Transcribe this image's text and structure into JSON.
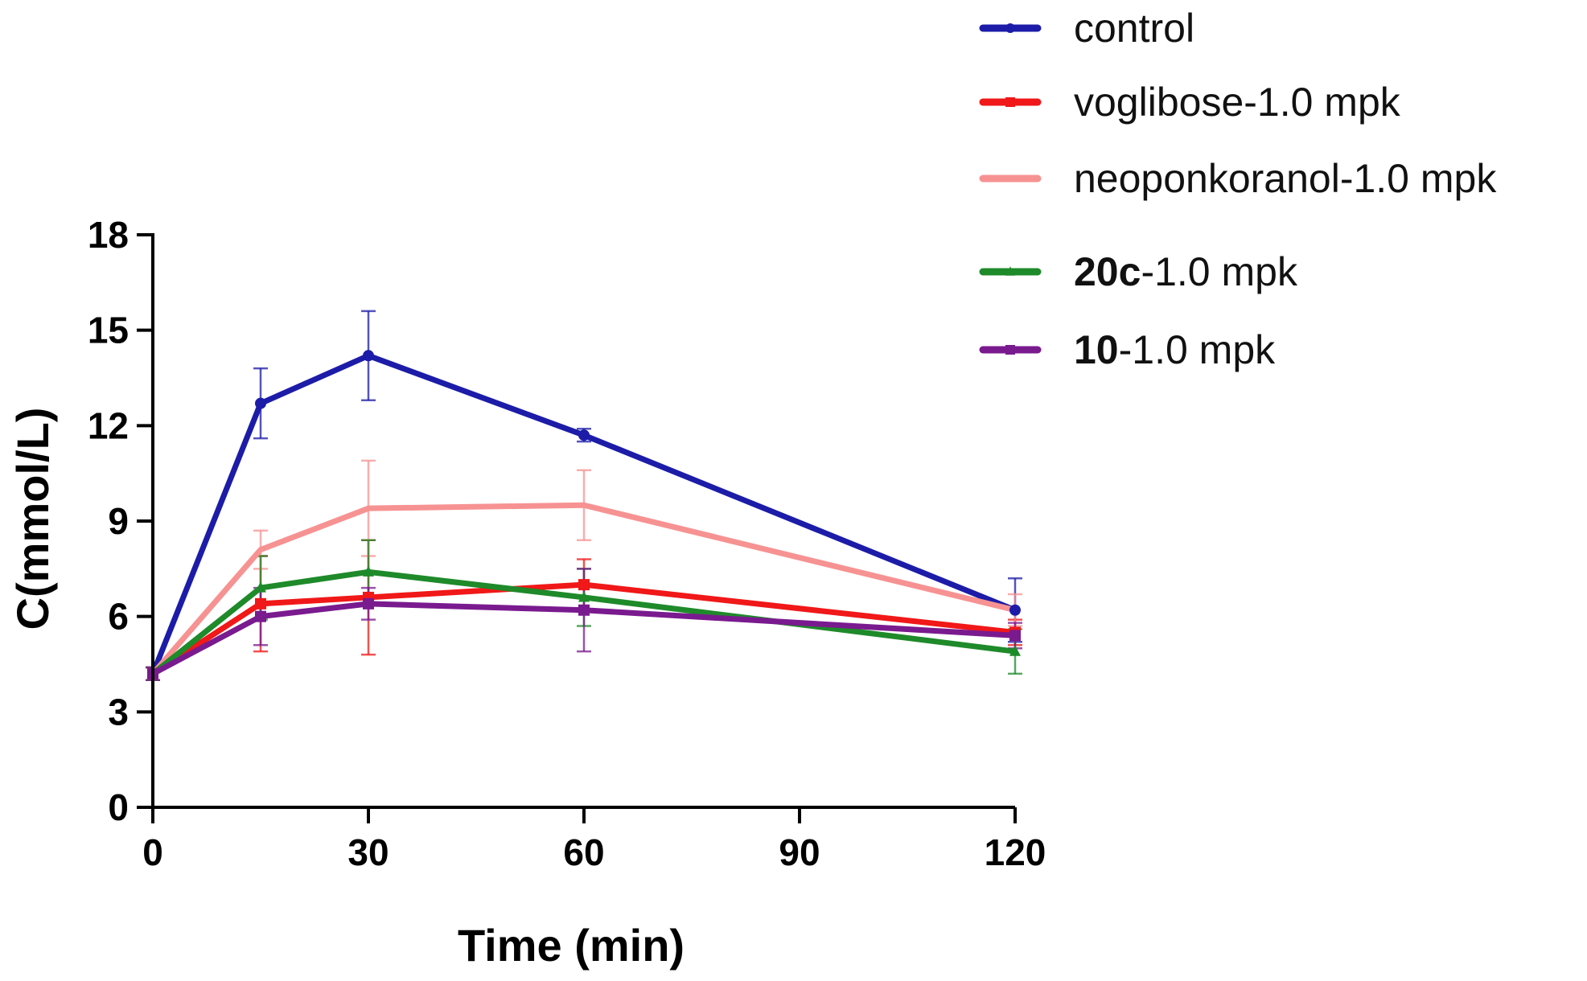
{
  "chart_data": {
    "type": "line",
    "title": "",
    "xlabel": "Time (min)",
    "ylabel": "C(mmol/L)",
    "xlim": [
      0,
      120
    ],
    "ylim": [
      0,
      18
    ],
    "xticks": [
      0,
      30,
      60,
      90,
      120
    ],
    "yticks": [
      0,
      3,
      6,
      9,
      12,
      15,
      18
    ],
    "x": [
      0,
      15,
      30,
      60,
      120
    ],
    "grid": false,
    "legend_position": "top-right",
    "series": [
      {
        "name": "control",
        "legend_bold": "",
        "legend_rest": "control",
        "color": "#1c1ca8",
        "marker": "circle",
        "values": [
          4.2,
          12.7,
          14.2,
          11.7,
          6.2
        ],
        "errors": [
          0.2,
          1.1,
          1.4,
          0.2,
          1.0
        ]
      },
      {
        "name": "voglibose-1.0 mpk",
        "legend_bold": "",
        "legend_rest": "voglibose-1.0 mpk",
        "color": "#f01818",
        "marker": "square",
        "values": [
          4.2,
          6.4,
          6.6,
          7.0,
          5.5
        ],
        "errors": [
          0.2,
          1.5,
          1.8,
          0.8,
          0.4
        ]
      },
      {
        "name": "neoponkoranol-1.0 mpk",
        "legend_bold": "",
        "legend_rest": "neoponkoranol-1.0 mpk",
        "color": "#f79292",
        "marker": "none",
        "values": [
          4.2,
          8.1,
          9.4,
          9.5,
          6.2
        ],
        "errors": [
          0.2,
          0.6,
          1.5,
          1.1,
          0.5
        ]
      },
      {
        "name": "20c-1.0 mpk",
        "legend_bold": "20c",
        "legend_rest": "-1.0 mpk",
        "color": "#1e8a2a",
        "marker": "triangle",
        "values": [
          4.2,
          6.9,
          7.4,
          6.6,
          4.9
        ],
        "errors": [
          0.2,
          1.0,
          1.0,
          0.9,
          0.7
        ]
      },
      {
        "name": "10-1.0 mpk",
        "legend_bold": "10",
        "legend_rest": "-1.0 mpk",
        "color": "#7a1a8f",
        "marker": "square",
        "values": [
          4.2,
          6.0,
          6.4,
          6.2,
          5.4
        ],
        "errors": [
          0.2,
          0.9,
          0.5,
          1.3,
          0.4
        ]
      }
    ]
  }
}
